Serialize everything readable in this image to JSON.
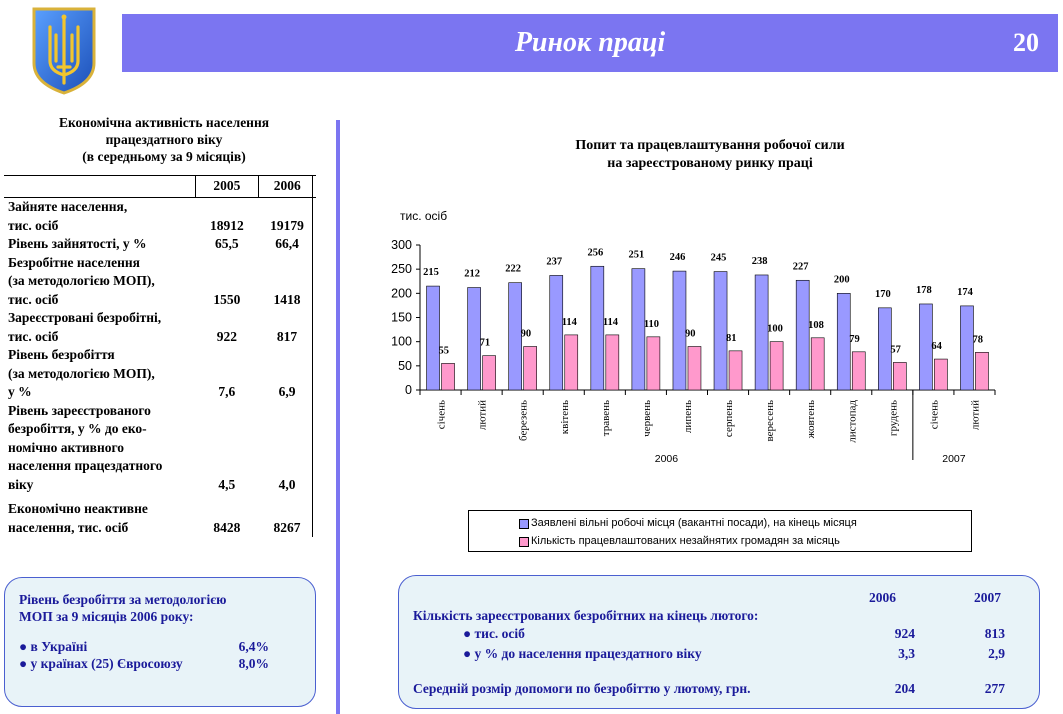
{
  "header": {
    "title": "Ринок праці",
    "page_number": "20"
  },
  "table": {
    "title_lines": [
      "Економічна активність населення",
      "працездатного віку",
      "(в середньому за 9 місяців)"
    ],
    "columns": [
      "2005",
      "2006"
    ],
    "rows": [
      {
        "label_lines": [
          "Зайняте населення,",
          "тис. осіб"
        ],
        "v2005": "18912",
        "v2006": "19179"
      },
      {
        "label_lines": [
          "Рівень зайнятості, у %"
        ],
        "v2005": "65,5",
        "v2006": "66,4"
      },
      {
        "label_lines": [
          "Безробітне населення",
          "(за методологією МОП),",
          "тис. осіб"
        ],
        "v2005": "1550",
        "v2006": "1418"
      },
      {
        "label_lines": [
          "Зареєстровані безробітні,",
          "тис. осіб"
        ],
        "v2005": "922",
        "v2006": "817"
      },
      {
        "label_lines": [
          "Рівень безробіття",
          "(за методологією МОП),",
          " у %"
        ],
        "v2005": "7,6",
        "v2006": "6,9"
      },
      {
        "label_lines": [
          "Рівень зареєстрованого",
          "безробіття, у % до еко-",
          "номічно активного",
          "населення працездатного",
          "віку"
        ],
        "v2005": "4,5",
        "v2006": "4,0"
      },
      {
        "label_lines": [
          "Економічно неактивне",
          "населення, тис. осіб"
        ],
        "v2005": "8428",
        "v2006": "8267"
      }
    ]
  },
  "box_left": {
    "title_lines": [
      "Рівень безробіття за методологією",
      "МОП за  9 місяців 2006 року:"
    ],
    "items": [
      {
        "label": "● в Україні",
        "value": "6,4%"
      },
      {
        "label": "● у країнах (25) Євросоюзу",
        "value": "8,0%"
      }
    ]
  },
  "box_right": {
    "years": [
      "2006",
      "2007"
    ],
    "heading": "Кількість зареєстрованих безробітних на кінець лютого:",
    "rows": [
      {
        "label": "● тис. осіб",
        "v2006": "924",
        "v2007": "813"
      },
      {
        "label": "● у % до населення працездатного віку",
        "v2006": "3,3",
        "v2007": "2,9"
      }
    ],
    "footer": {
      "label": "Середній розмір допомоги по безробіттю у лютому, грн.",
      "v2006": "204",
      "v2007": "277"
    }
  },
  "chart_title_lines": [
    "Попит та  працевлаштування робочої сили",
    "на зареєстрованому ринку праці"
  ],
  "chart_data": {
    "type": "bar",
    "ylabel": "тис. осіб",
    "ylim": [
      0,
      300
    ],
    "yticks": [
      0,
      50,
      100,
      150,
      200,
      250,
      300
    ],
    "categories": [
      "січень",
      "лютий",
      "березень",
      "квітень",
      "травень",
      "червень",
      "липень",
      "серпень",
      "вересень",
      "жовтень",
      "листопад",
      "грудень",
      "січень",
      "лютий"
    ],
    "year_groups": [
      {
        "label": "2006",
        "count": 12
      },
      {
        "label": "2007",
        "count": 2
      }
    ],
    "series": [
      {
        "name": "Заявлені вільні робочі місця (вакантні посади), на кінець місяця",
        "color": "#9999ff",
        "values": [
          215,
          212,
          222,
          237,
          256,
          251,
          246,
          245,
          238,
          227,
          200,
          170,
          178,
          174
        ]
      },
      {
        "name": "Кількість працевлаштованих незайнятих громадян за місяць",
        "color": "#ff99cc",
        "values": [
          55,
          71,
          90,
          114,
          114,
          110,
          90,
          81,
          100,
          108,
          79,
          57,
          64,
          78
        ]
      }
    ],
    "legend_position": "bottom"
  }
}
